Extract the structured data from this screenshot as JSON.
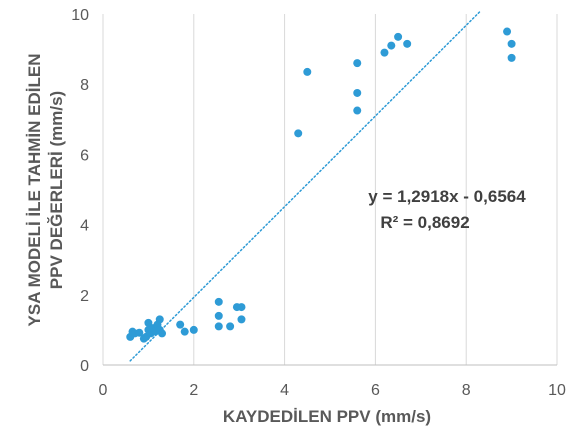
{
  "chart_data": {
    "type": "scatter",
    "xlabel": "KAYDEDİLEN  PPV (mm/s)",
    "ylabel_lines": [
      "YSA MODELİ İLE TAHMİN EDİLEN",
      "PPV DEĞERLERİ (mm/s)"
    ],
    "xlim": [
      0,
      10
    ],
    "ylim": [
      0,
      10
    ],
    "x_ticks": [
      "0",
      "2",
      "4",
      "6",
      "8",
      "10"
    ],
    "y_ticks": [
      "0",
      "2",
      "4",
      "6",
      "8",
      "10"
    ],
    "grid": "vertical",
    "marker_color": "#2E9BD6",
    "trendline": {
      "slope": 1.2918,
      "intercept": -0.6564,
      "x_range": [
        0.6,
        8.3
      ],
      "color": "#2E9BD6",
      "style": "dotted",
      "equation": "y = 1,2918x - 0,6564",
      "r_squared": "R² = 0,8692"
    },
    "points": [
      [
        0.6,
        0.8
      ],
      [
        0.65,
        0.95
      ],
      [
        0.7,
        0.9
      ],
      [
        0.8,
        0.92
      ],
      [
        0.9,
        0.75
      ],
      [
        0.95,
        0.8
      ],
      [
        1.0,
        1.0
      ],
      [
        1.0,
        1.2
      ],
      [
        1.05,
        0.9
      ],
      [
        1.1,
        1.05
      ],
      [
        1.15,
        0.95
      ],
      [
        1.2,
        1.15
      ],
      [
        1.25,
        1.0
      ],
      [
        1.25,
        1.3
      ],
      [
        1.3,
        0.9
      ],
      [
        1.7,
        1.15
      ],
      [
        1.8,
        0.95
      ],
      [
        2.0,
        1.0
      ],
      [
        2.55,
        1.8
      ],
      [
        2.55,
        1.4
      ],
      [
        2.55,
        1.1
      ],
      [
        2.8,
        1.1
      ],
      [
        2.95,
        1.65
      ],
      [
        3.05,
        1.65
      ],
      [
        3.05,
        1.3
      ],
      [
        4.3,
        6.6
      ],
      [
        4.5,
        8.35
      ],
      [
        5.6,
        8.6
      ],
      [
        5.6,
        7.75
      ],
      [
        5.6,
        7.25
      ],
      [
        6.2,
        8.9
      ],
      [
        6.35,
        9.1
      ],
      [
        6.5,
        9.35
      ],
      [
        6.7,
        9.15
      ],
      [
        8.9,
        9.5
      ],
      [
        9.0,
        9.15
      ],
      [
        9.0,
        8.75
      ]
    ]
  }
}
